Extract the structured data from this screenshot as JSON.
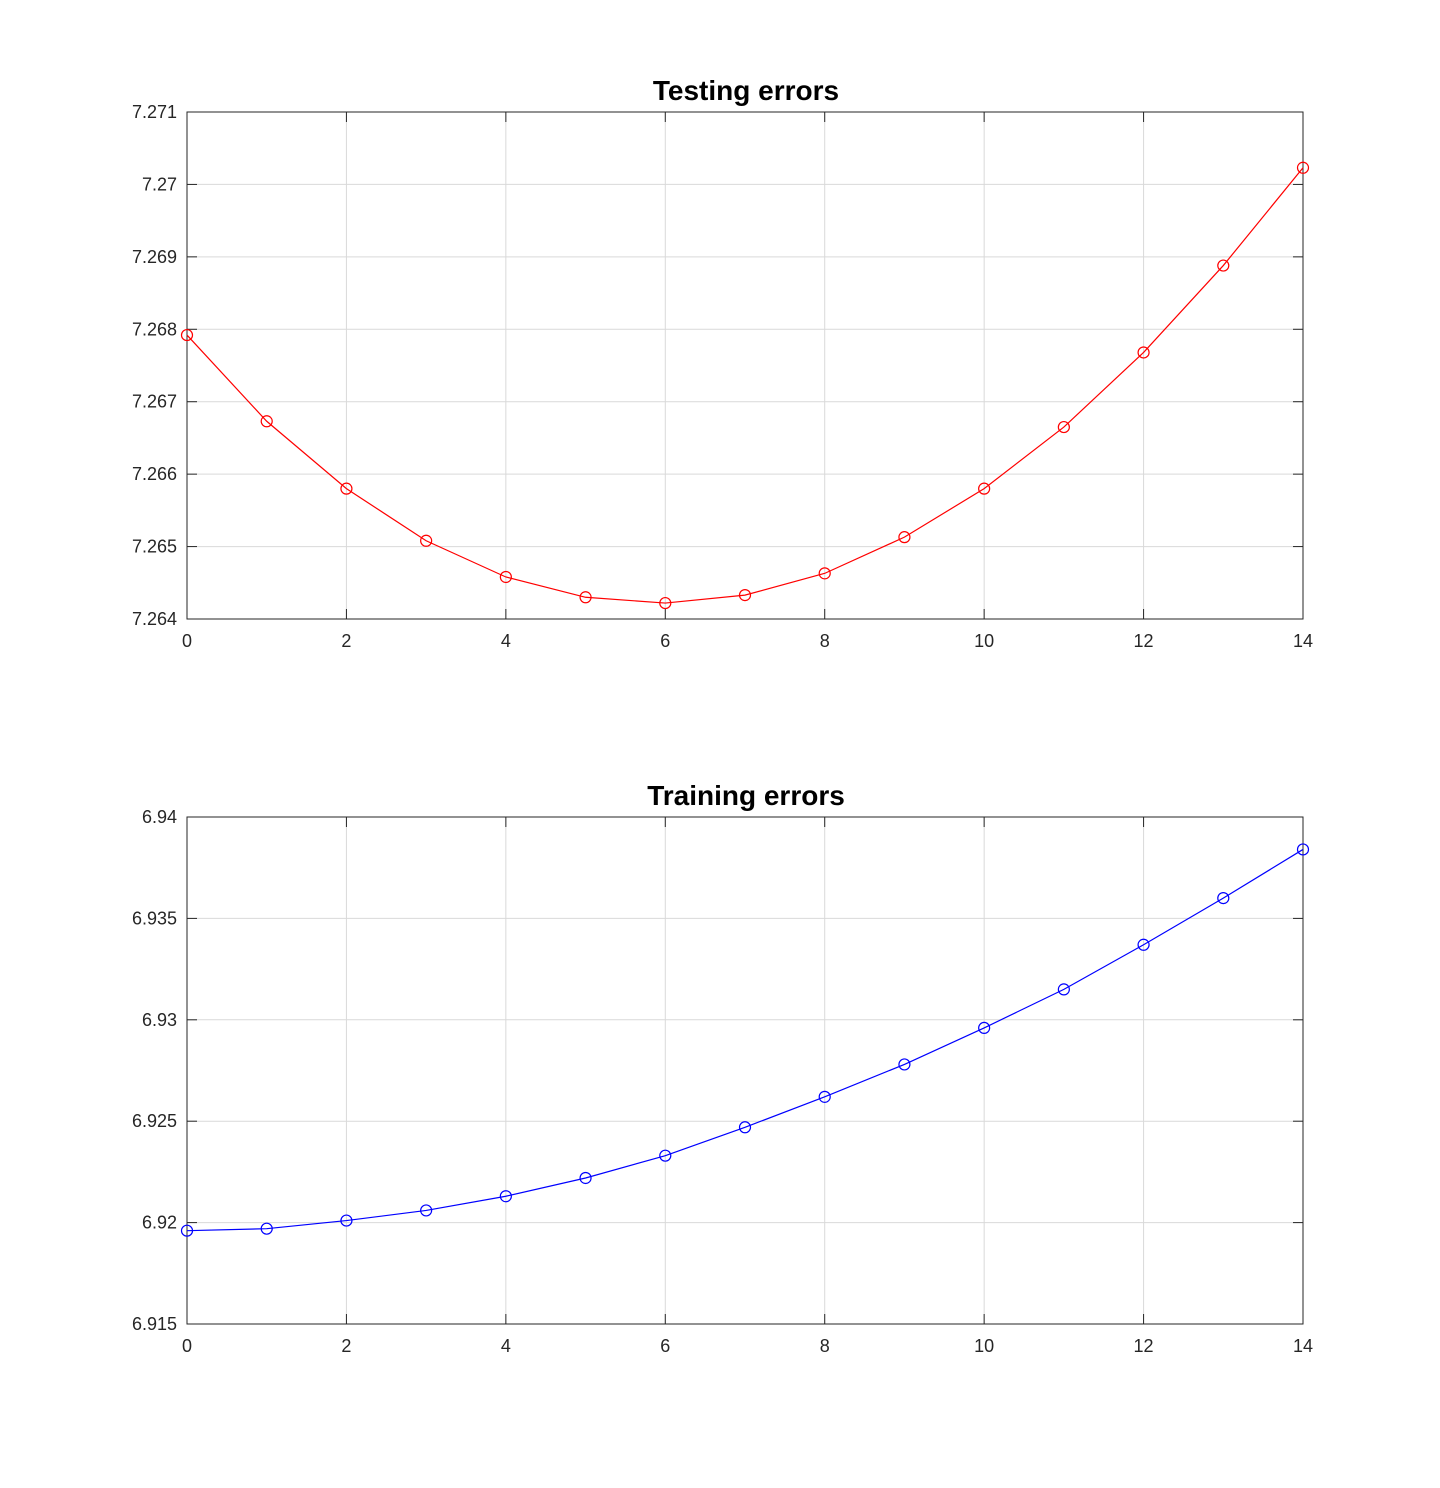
{
  "chart_data": [
    {
      "type": "line",
      "title": "Testing errors",
      "xlabel": "",
      "ylabel": "",
      "xlim": [
        0,
        14
      ],
      "ylim": [
        7.264,
        7.271
      ],
      "xticks": [
        0,
        2,
        4,
        6,
        8,
        10,
        12,
        14
      ],
      "xtick_labels": [
        "0",
        "2",
        "4",
        "6",
        "8",
        "10",
        "12",
        "14"
      ],
      "yticks": [
        7.264,
        7.265,
        7.266,
        7.267,
        7.268,
        7.269,
        7.27,
        7.271
      ],
      "ytick_labels": [
        "7.264",
        "7.265",
        "7.266",
        "7.267",
        "7.268",
        "7.269",
        "7.27",
        "7.271"
      ],
      "grid": true,
      "marker": "circle-open",
      "color": "#ff0000",
      "x": [
        0,
        1,
        2,
        3,
        4,
        5,
        6,
        7,
        8,
        9,
        10,
        11,
        12,
        13,
        14
      ],
      "y": [
        7.26792,
        7.26673,
        7.2658,
        7.26508,
        7.26458,
        7.2643,
        7.26422,
        7.26433,
        7.26463,
        7.26513,
        7.2658,
        7.26665,
        7.26768,
        7.26888,
        7.27023
      ]
    },
    {
      "type": "line",
      "title": "Training errors",
      "xlabel": "",
      "ylabel": "",
      "xlim": [
        0,
        14
      ],
      "ylim": [
        6.915,
        6.94
      ],
      "xticks": [
        0,
        2,
        4,
        6,
        8,
        10,
        12,
        14
      ],
      "xtick_labels": [
        "0",
        "2",
        "4",
        "6",
        "8",
        "10",
        "12",
        "14"
      ],
      "yticks": [
        6.915,
        6.92,
        6.925,
        6.93,
        6.935,
        6.94
      ],
      "ytick_labels": [
        "6.915",
        "6.92",
        "6.925",
        "6.93",
        "6.935",
        "6.94"
      ],
      "grid": true,
      "marker": "circle-open",
      "color": "#0000ff",
      "x": [
        0,
        1,
        2,
        3,
        4,
        5,
        6,
        7,
        8,
        9,
        10,
        11,
        12,
        13,
        14
      ],
      "y": [
        6.9196,
        6.9197,
        6.9201,
        6.9206,
        6.9213,
        6.9222,
        6.9233,
        6.9247,
        6.9262,
        6.9278,
        6.9296,
        6.9315,
        6.9337,
        6.936,
        6.9384
      ]
    }
  ]
}
